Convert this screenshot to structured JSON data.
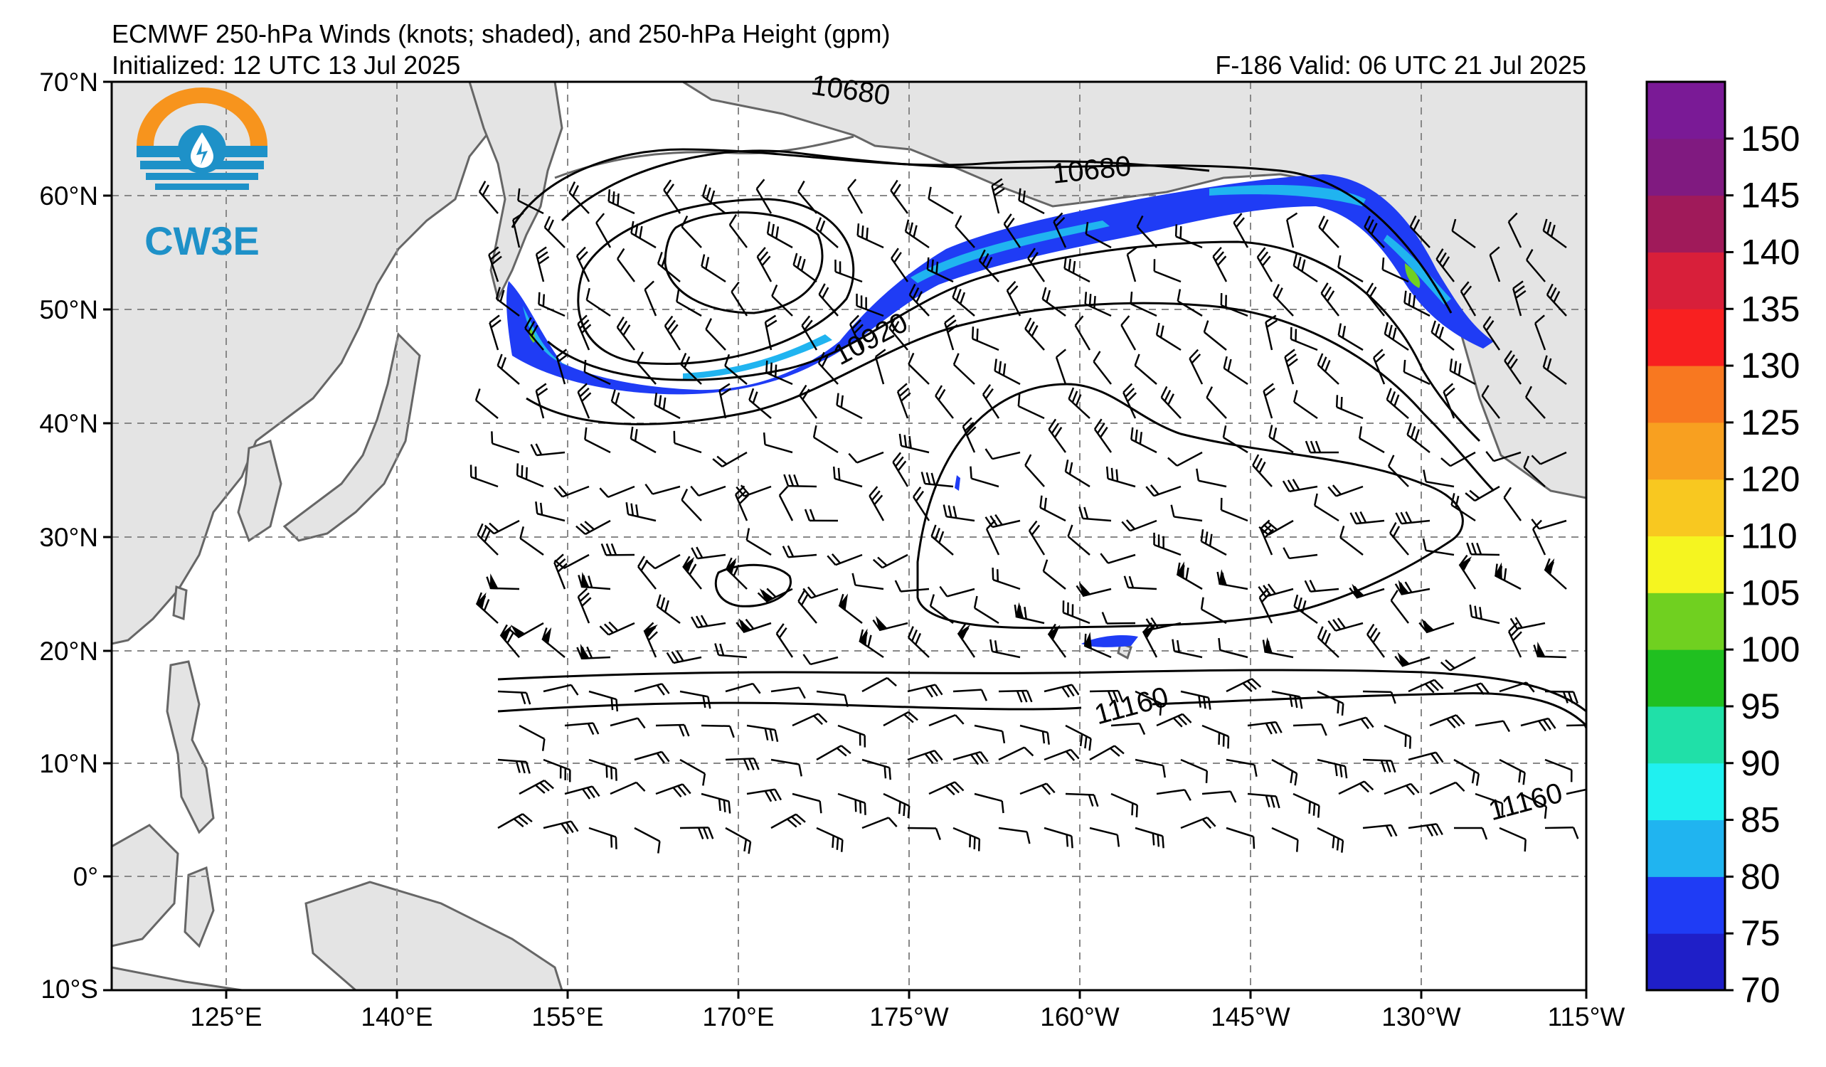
{
  "header": {
    "title": "ECMWF 250-hPa Winds (knots; shaded), and 250-hPa Height (gpm)",
    "initialized": "Initialized: 12 UTC 13 Jul 2025",
    "valid": "F-186  Valid: 06 UTC 21 Jul 2025"
  },
  "logo": {
    "text": "CW3E",
    "colors": {
      "sun": "#f7941d",
      "water": "#1e91c8"
    }
  },
  "map": {
    "region": "North Pacific",
    "extent": {
      "lon_west": 110,
      "lon_east": -115,
      "lat_south": -10,
      "lat_north": 70
    },
    "colors": {
      "land": "#e4e4e4",
      "coast": "#666666",
      "ocean": "#ffffff",
      "grid": "#888888"
    },
    "lat_labels": [
      "70°N",
      "60°N",
      "50°N",
      "40°N",
      "30°N",
      "20°N",
      "10°N",
      "0°",
      "10°S"
    ],
    "lon_labels": [
      "125°E",
      "140°E",
      "155°E",
      "170°E",
      "175°W",
      "160°W",
      "145°W",
      "130°W",
      "115°W"
    ],
    "contour_labels": [
      "10680",
      "10680",
      "10920",
      "11160",
      "11160"
    ]
  },
  "colorbar": {
    "tick_labels": [
      "70",
      "75",
      "80",
      "85",
      "90",
      "95",
      "100",
      "105",
      "110",
      "120",
      "125",
      "130",
      "135",
      "140",
      "145",
      "150"
    ],
    "bins": [
      {
        "from": 70,
        "to": 75,
        "color": "#1f1fc8"
      },
      {
        "from": 75,
        "to": 80,
        "color": "#1f3cf5"
      },
      {
        "from": 80,
        "to": 85,
        "color": "#20b4f0"
      },
      {
        "from": 85,
        "to": 90,
        "color": "#20f0f0"
      },
      {
        "from": 90,
        "to": 95,
        "color": "#20e0a8"
      },
      {
        "from": 95,
        "to": 100,
        "color": "#20c020"
      },
      {
        "from": 100,
        "to": 105,
        "color": "#70d020"
      },
      {
        "from": 105,
        "to": 110,
        "color": "#f5f520"
      },
      {
        "from": 110,
        "to": 120,
        "color": "#f8c820"
      },
      {
        "from": 120,
        "to": 125,
        "color": "#f8a020"
      },
      {
        "from": 125,
        "to": 130,
        "color": "#f87820"
      },
      {
        "from": 130,
        "to": 135,
        "color": "#f82020"
      },
      {
        "from": 135,
        "to": 140,
        "color": "#d81f3a"
      },
      {
        "from": 140,
        "to": 145,
        "color": "#a01a5a"
      },
      {
        "from": 145,
        "to": 150,
        "color": "#801a80"
      },
      {
        "from": 150,
        "to": 155,
        "color": "#7a1a96"
      }
    ]
  }
}
